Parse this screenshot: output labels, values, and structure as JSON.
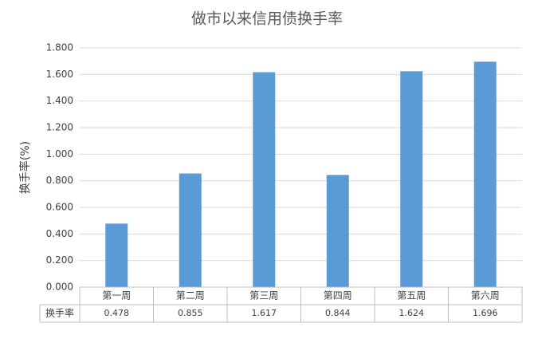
{
  "chart_data": {
    "type": "bar",
    "title": "做市以来信用债换手率",
    "y_label": "换手率(%)",
    "categories": [
      "第一周",
      "第二周",
      "第三周",
      "第四周",
      "第五周",
      "第六周"
    ],
    "series": [
      {
        "name": "换手率",
        "color": "#5b9bd5",
        "values": [
          0.478,
          0.855,
          1.617,
          0.844,
          1.624,
          1.696
        ]
      }
    ],
    "ylim": [
      0,
      1.8
    ],
    "yticks": [
      {
        "value": 0,
        "label": "0.000"
      },
      {
        "value": 0.2,
        "label": "0.200"
      },
      {
        "value": 0.4,
        "label": "0.400"
      },
      {
        "value": 0.6,
        "label": "0.600"
      },
      {
        "value": 0.8,
        "label": "0.800"
      },
      {
        "value": 1.0,
        "label": "1.000"
      },
      {
        "value": 1.2,
        "label": "1.200"
      },
      {
        "value": 1.4,
        "label": "1.400"
      },
      {
        "value": 1.6,
        "label": "1.600"
      },
      {
        "value": 1.8,
        "label": "1.800"
      }
    ],
    "grid": true,
    "data_table": true
  }
}
